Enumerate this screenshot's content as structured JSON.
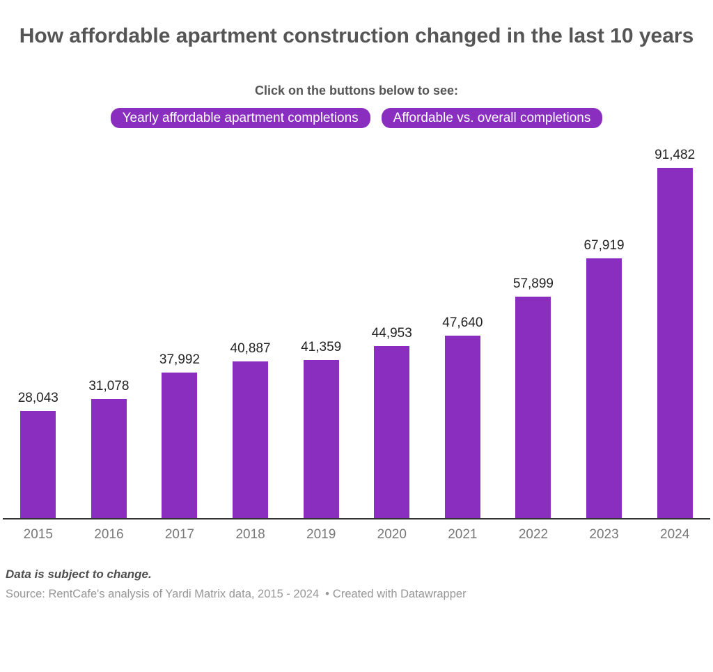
{
  "header": {
    "title": "How affordable apartment construction changed in the last 10 years",
    "subtitle": "Click on the buttons below to see:"
  },
  "buttons": [
    {
      "label": "Yearly affordable apartment completions"
    },
    {
      "label": "Affordable vs. overall completions"
    }
  ],
  "chart_data": {
    "type": "bar",
    "title": "How affordable apartment construction changed in the last 10 years",
    "categories": [
      "2015",
      "2016",
      "2017",
      "2018",
      "2019",
      "2020",
      "2021",
      "2022",
      "2023",
      "2024"
    ],
    "values": [
      28043,
      31078,
      37992,
      40887,
      41359,
      44953,
      47640,
      57899,
      67919,
      91482
    ],
    "value_labels": [
      "28,043",
      "31,078",
      "37,992",
      "40,887",
      "41,359",
      "44,953",
      "47,640",
      "57,899",
      "67,919",
      "91,482"
    ],
    "xlabel": "",
    "ylabel": "",
    "ylim": [
      0,
      91482
    ],
    "grid": false,
    "legend": false,
    "value_labels_position": "above-bars"
  },
  "footer": {
    "note": "Data is subject to change.",
    "source": "Source: RentCafe's analysis of Yardi Matrix data, 2015 - 2024",
    "separator": "•",
    "attribution": "Created with Datawrapper"
  },
  "colors": {
    "accent_purple": "#8a2ec0",
    "button_text": "#ffffff",
    "title_text": "#555555",
    "value_label": "#222222",
    "axis_label": "#777777",
    "axis_line": "#333333",
    "note_text": "#4d4d4d",
    "source_text": "#969696",
    "background": "#ffffff"
  }
}
